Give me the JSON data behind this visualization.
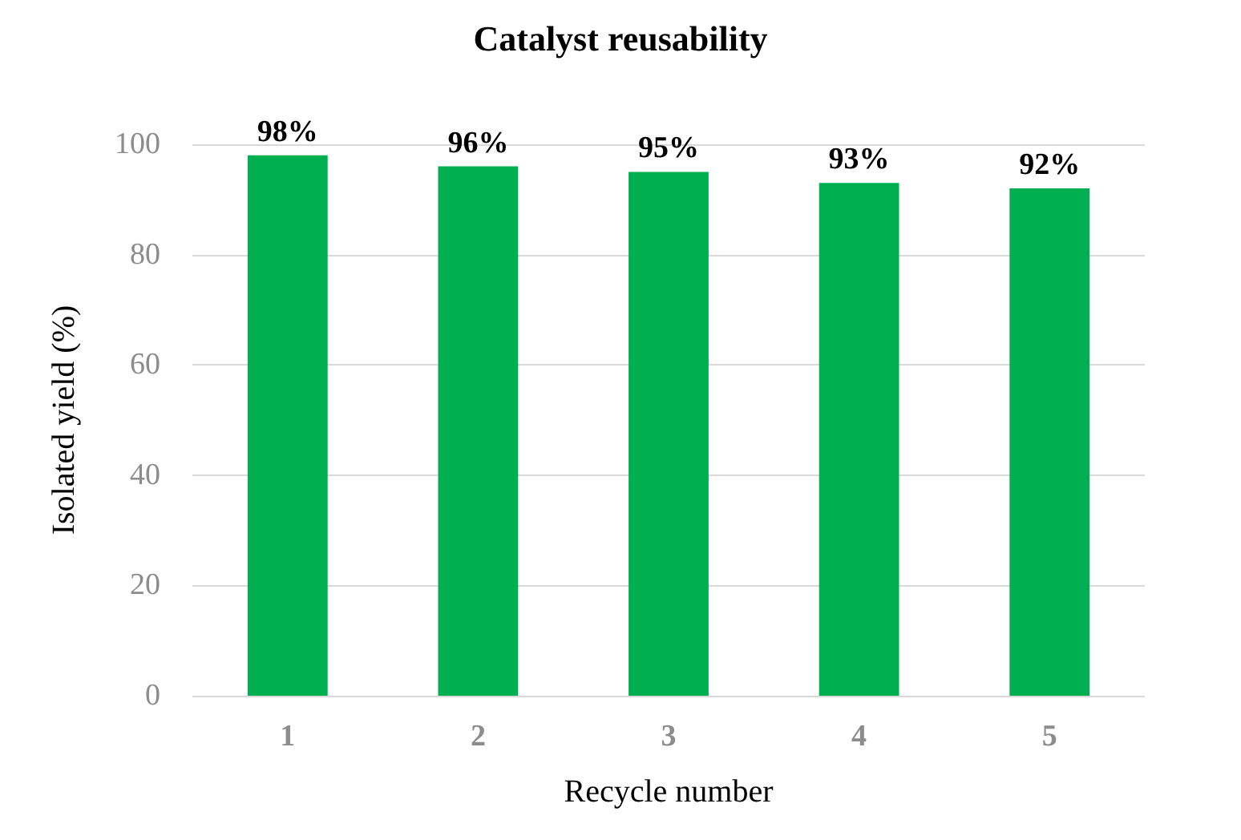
{
  "chart_data": {
    "type": "bar",
    "title": "Catalyst reusability",
    "xlabel": "Recycle number",
    "ylabel": "Isolated yield (%)",
    "categories": [
      "1",
      "2",
      "3",
      "4",
      "5"
    ],
    "values": [
      98,
      96,
      95,
      93,
      92
    ],
    "color": "#00b050",
    "value_labels": [
      "98%",
      "96%",
      "95%",
      "93%",
      "92%"
    ],
    "ylim": [
      0,
      100
    ],
    "yticks": [
      0,
      20,
      40,
      60,
      80,
      100
    ],
    "grid": "y"
  }
}
